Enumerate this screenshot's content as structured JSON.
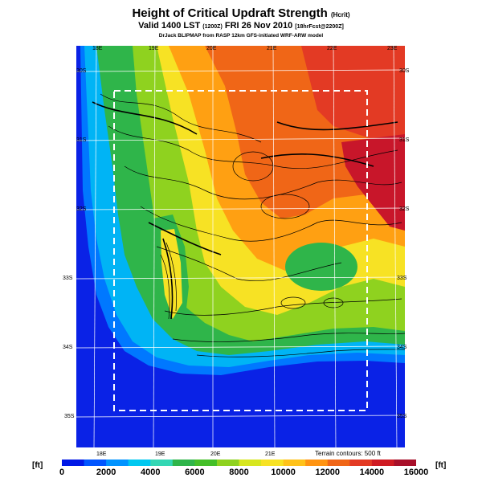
{
  "title": "Height of Critical Updraft Strength",
  "title_tag": "(Hcrit)",
  "subtitle": "Valid 1400 LST",
  "subtitle_tag1": "(1200Z)",
  "subtitle_date": "FRI 26 Nov 2010",
  "subtitle_tag2": "[18hrFcst@2200Z]",
  "credit": "DrJack BLIPMAP from RASP 12km GFS-initiated WRF-ARW model",
  "lon_top": [
    "18E",
    "19E",
    "20E",
    "21E",
    "22E",
    "23E"
  ],
  "lon_bottom": [
    "18E",
    "19E",
    "20E",
    "21E"
  ],
  "lat_left": [
    "30S",
    "31S",
    "32S",
    "33S",
    "34S",
    "35S"
  ],
  "lat_right": [
    "30S",
    "31S",
    "32S",
    "33S",
    "34S",
    "35S"
  ],
  "terrain_note": "Terrain contours: 500 ft",
  "unit_left": "[ft]",
  "unit_right": "[ft]",
  "colorbar": {
    "ticks": [
      "0",
      "2000",
      "4000",
      "6000",
      "8000",
      "10000",
      "12000",
      "14000",
      "16000"
    ],
    "colors": [
      "#0018e6",
      "#0055ff",
      "#0093ff",
      "#00c8f0",
      "#33d7b4",
      "#2fb54a",
      "#44bf28",
      "#8fd21f",
      "#d7e61f",
      "#f7e224",
      "#ffc21a",
      "#ff9412",
      "#f06617",
      "#e33a24",
      "#cf1b23",
      "#a8102a"
    ]
  }
}
